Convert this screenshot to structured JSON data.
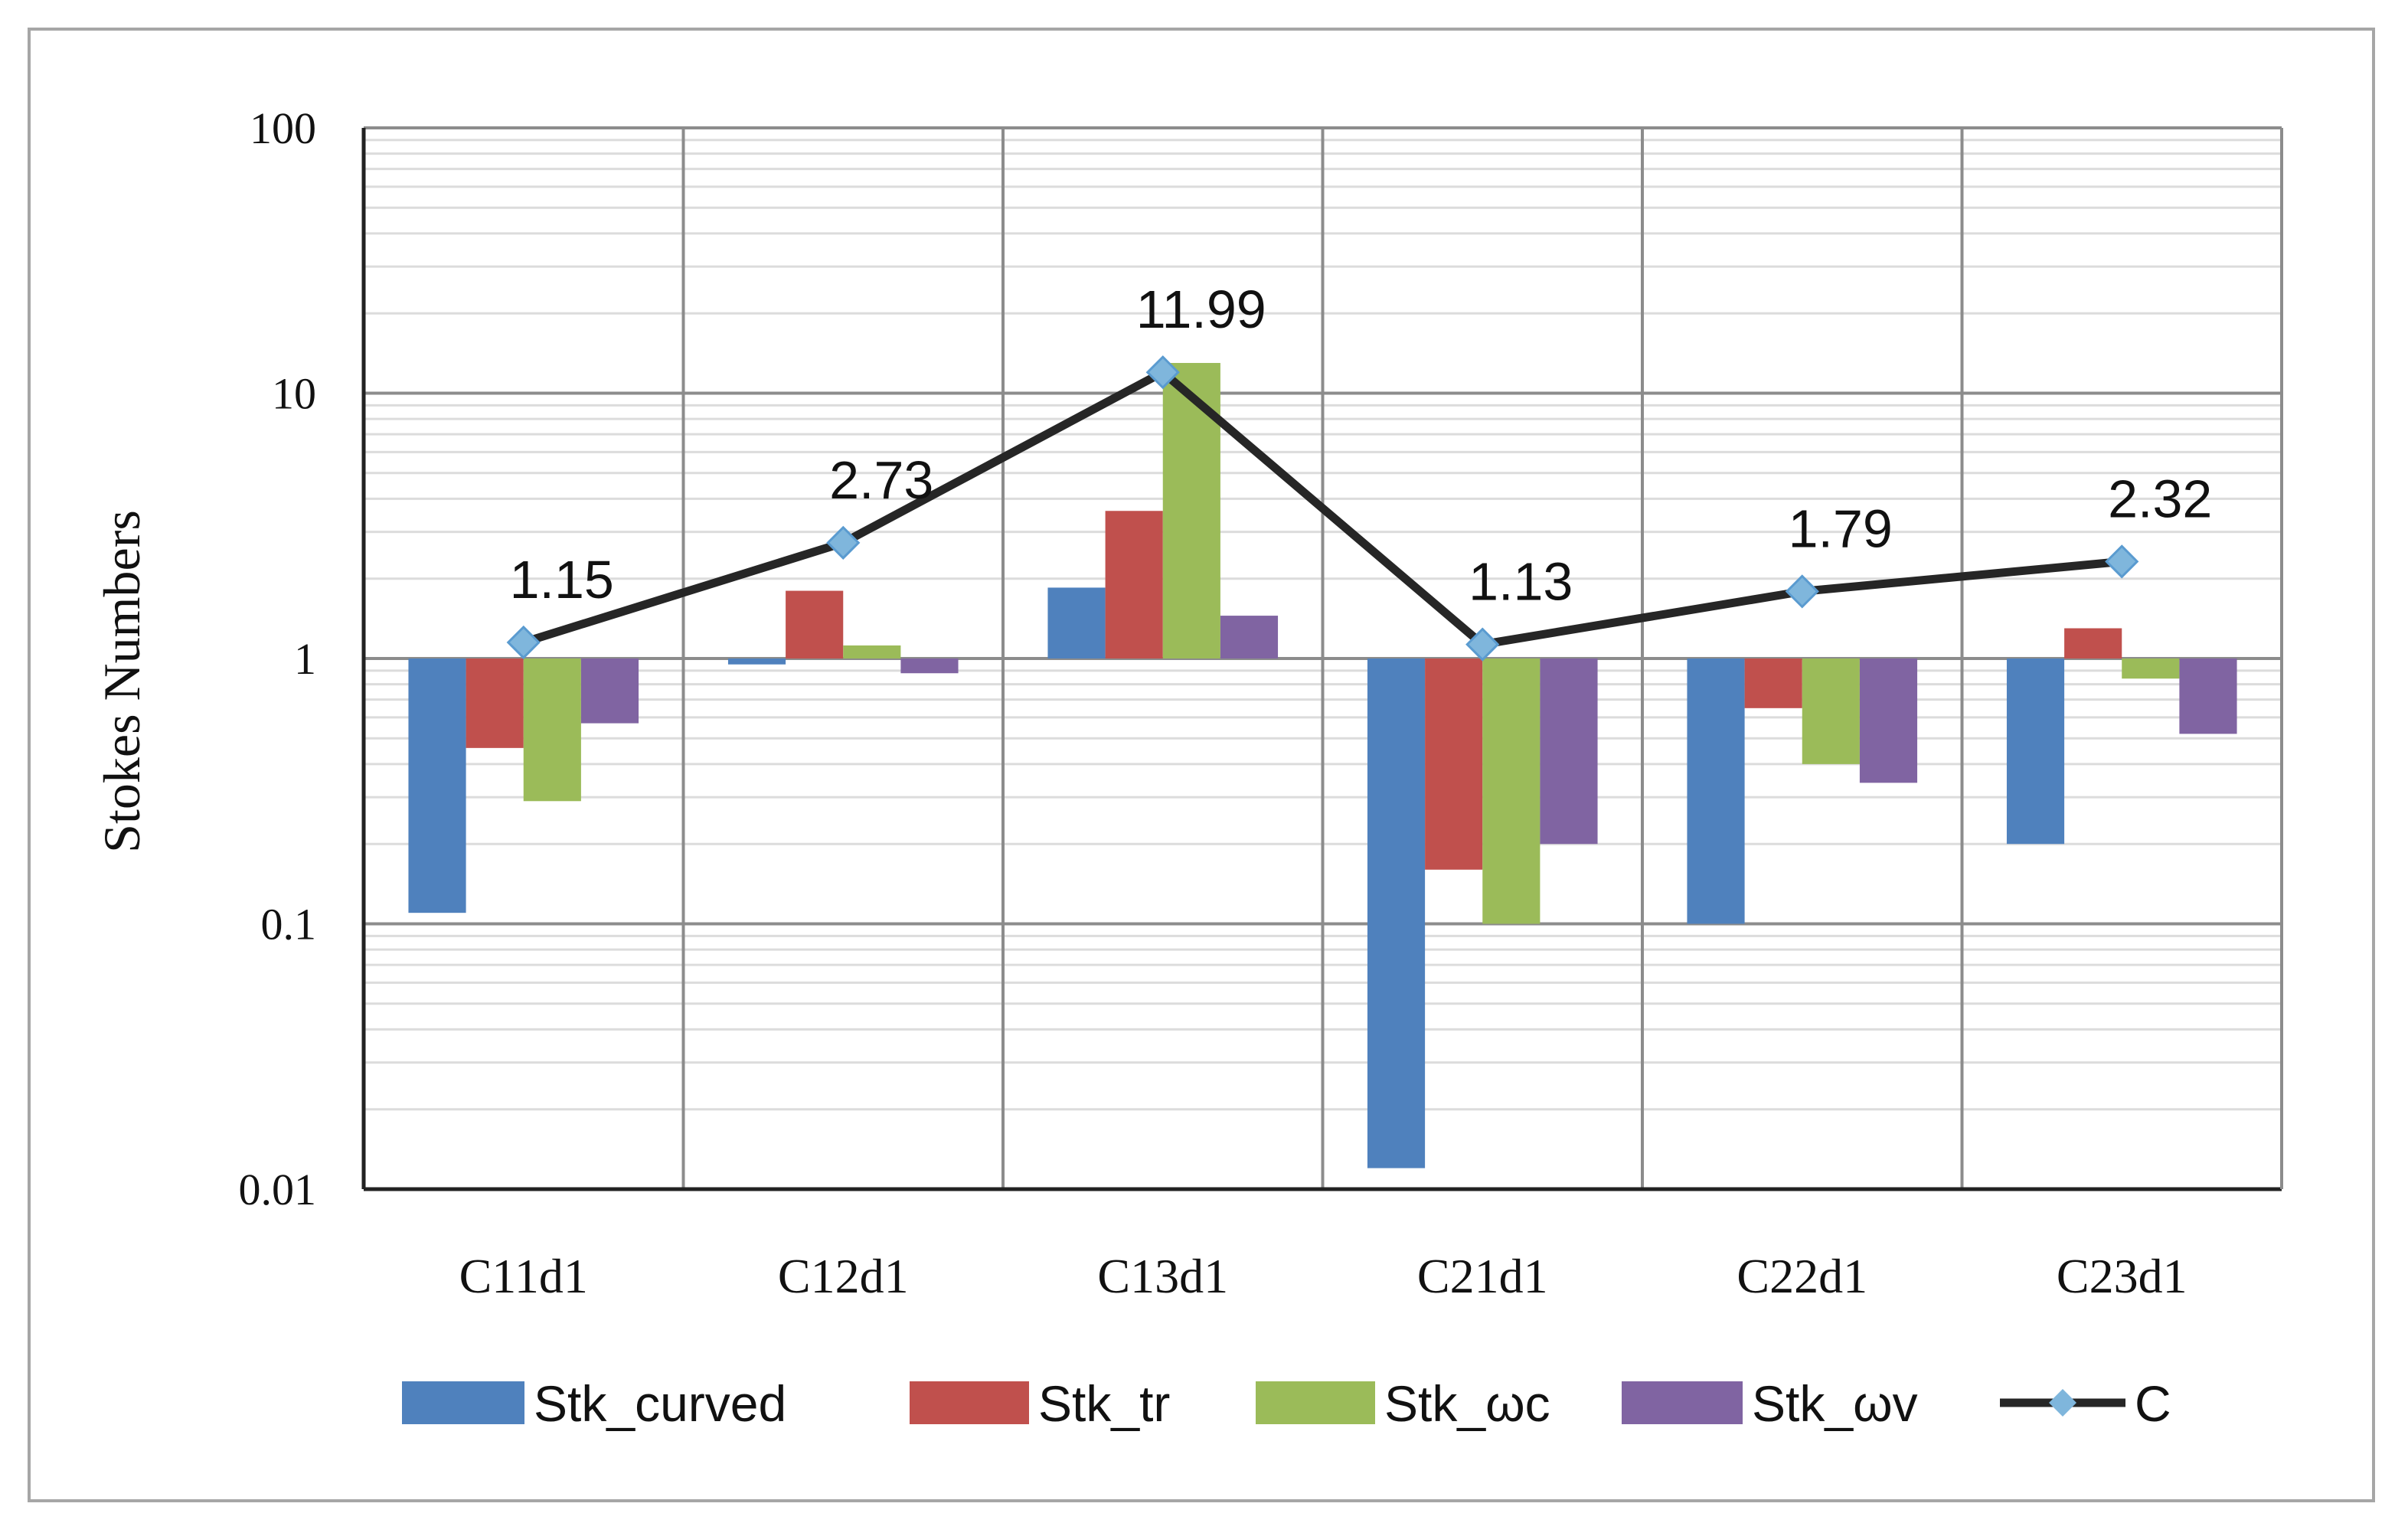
{
  "chart_data": {
    "type": "bar",
    "title": "",
    "xlabel": "",
    "ylabel": "Stokes Numbers",
    "yscale": "log",
    "ylim": [
      0.01,
      100
    ],
    "ytick_labels": [
      "100",
      "10",
      "1",
      "0.1",
      "0.01"
    ],
    "ytick_values": [
      100,
      10,
      1,
      0.1,
      0.01
    ],
    "bar_baseline": 1,
    "categories": [
      "C11d1",
      "C12d1",
      "C13d1",
      "C21d1",
      "C22d1",
      "C23d1"
    ],
    "series": [
      {
        "name": "Stk_curved",
        "type": "bar",
        "color": "#4f81bd",
        "values": [
          0.11,
          0.95,
          1.85,
          0.012,
          0.1,
          0.2
        ]
      },
      {
        "name": "Stk_tr",
        "type": "bar",
        "color": "#c0504d",
        "values": [
          0.46,
          1.8,
          3.6,
          0.16,
          0.65,
          1.3
        ]
      },
      {
        "name": "Stk_ωc",
        "type": "bar",
        "color": "#9bbb59",
        "values": [
          0.29,
          1.12,
          13.0,
          0.1,
          0.4,
          0.84
        ]
      },
      {
        "name": "Stk_ωv",
        "type": "bar",
        "color": "#8064a2",
        "values": [
          0.57,
          0.88,
          1.45,
          0.2,
          0.34,
          0.52
        ]
      },
      {
        "name": "C",
        "type": "line",
        "color": "#262626",
        "marker_color": "#7fb6dc",
        "values": [
          1.15,
          2.73,
          11.99,
          1.13,
          1.79,
          2.32
        ],
        "labels": [
          "1.15",
          "2.73",
          "11.99",
          "1.13",
          "1.79",
          "2.32"
        ]
      }
    ],
    "grid": true,
    "legend_position": "bottom"
  }
}
